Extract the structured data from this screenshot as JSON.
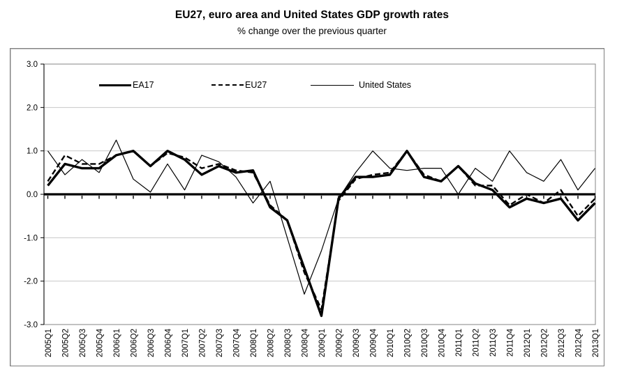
{
  "title": "EU27, euro area and United States GDP growth rates",
  "subtitle": "% change over the previous quarter",
  "legend": {
    "items": [
      {
        "label": "EA17",
        "swatch": "thick-solid-line-icon"
      },
      {
        "label": "EU27",
        "swatch": "dashed-line-icon"
      },
      {
        "label": "United States",
        "swatch": "thin-solid-line-icon"
      }
    ]
  },
  "chart_data": {
    "type": "line",
    "title": "EU27, euro area and United States GDP growth rates",
    "subtitle": "% change over the previous quarter",
    "xlabel": "",
    "ylabel": "",
    "ylim": [
      -3.0,
      3.0
    ],
    "y_ticks": [
      "3.0",
      "2.0",
      "1.0",
      "0.0",
      "-1.0",
      "-2.0",
      "-3.0"
    ],
    "grid": "horizontal-light-gray, bold black line at 0",
    "legend_position": "top-inside",
    "colors": {
      "line": "#000000",
      "grid": "#c8c8c8",
      "frame": "#999999",
      "background": "#ffffff"
    },
    "categories": [
      "2005Q1",
      "2005Q2",
      "2005Q3",
      "2005Q4",
      "2006Q1",
      "2006Q2",
      "2006Q3",
      "2006Q4",
      "2007Q1",
      "2007Q2",
      "2007Q3",
      "2007Q4",
      "2008Q1",
      "2008Q2",
      "2008Q3",
      "2008Q4",
      "2009Q1",
      "2009Q2",
      "2009Q3",
      "2009Q4",
      "2010Q1",
      "2010Q2",
      "2010Q3",
      "2010Q4",
      "2011Q1",
      "2011Q2",
      "2011Q3",
      "2011Q4",
      "2012Q1",
      "2012Q2",
      "2012Q3",
      "2012Q4",
      "2013Q1"
    ],
    "series": [
      {
        "name": "EA17",
        "style": "thick-solid",
        "values": [
          0.2,
          0.7,
          0.6,
          0.6,
          0.9,
          1.0,
          0.65,
          1.0,
          0.8,
          0.45,
          0.65,
          0.5,
          0.55,
          -0.3,
          -0.6,
          -1.7,
          -2.8,
          -0.1,
          0.4,
          0.4,
          0.45,
          1.0,
          0.4,
          0.3,
          0.65,
          0.25,
          0.1,
          -0.3,
          -0.1,
          -0.2,
          -0.1,
          -0.6,
          -0.2
        ]
      },
      {
        "name": "EU27",
        "style": "dashed",
        "values": [
          0.3,
          0.9,
          0.7,
          0.7,
          0.9,
          1.0,
          0.65,
          0.95,
          0.85,
          0.6,
          0.7,
          0.55,
          0.5,
          -0.25,
          -0.6,
          -1.8,
          -2.65,
          -0.15,
          0.35,
          0.45,
          0.5,
          1.0,
          0.45,
          0.3,
          0.65,
          0.2,
          0.2,
          -0.25,
          0.0,
          -0.2,
          0.1,
          -0.5,
          -0.1
        ]
      },
      {
        "name": "United States",
        "style": "thin-solid",
        "values": [
          1.0,
          0.45,
          0.8,
          0.5,
          1.25,
          0.35,
          0.05,
          0.7,
          0.1,
          0.9,
          0.75,
          0.4,
          -0.2,
          0.3,
          -1.0,
          -2.3,
          -1.3,
          -0.1,
          0.5,
          1.0,
          0.6,
          0.55,
          0.6,
          0.6,
          0.0,
          0.6,
          0.3,
          1.0,
          0.5,
          0.3,
          0.8,
          0.1,
          0.6
        ]
      }
    ]
  }
}
